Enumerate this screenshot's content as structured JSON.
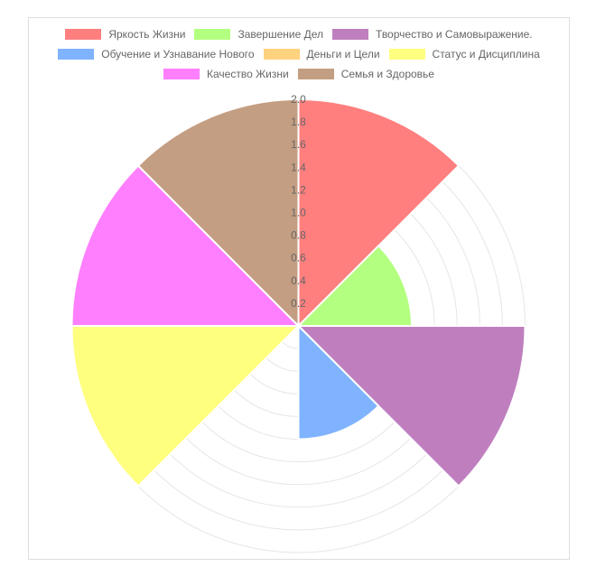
{
  "chart_data": {
    "type": "polarArea",
    "title": "",
    "r_range": [
      0,
      2.0
    ],
    "r_ticks": [
      "0.2",
      "0.4",
      "0.6",
      "0.8",
      "1.0",
      "1.2",
      "1.4",
      "1.6",
      "1.8",
      "2.0"
    ],
    "grid": true,
    "legend_position": "top",
    "categories": [
      "Яркость Жизни",
      "Завершение Дел",
      "Творчество и Самовыражение.",
      "Обучение и Узнавание Нового",
      "Деньги и Цели",
      "Статус и Дисциплина",
      "Качество Жизни",
      "Семья и Здоровье"
    ],
    "values": [
      2.0,
      1.0,
      2.0,
      1.0,
      0,
      2.0,
      2.0,
      2.0
    ],
    "colors": [
      "#ff7f7f",
      "#b3ff7f",
      "#bf7fbf",
      "#7fb3ff",
      "#ffd27f",
      "#ffff7f",
      "#ff7fff",
      "#c49e82"
    ]
  }
}
